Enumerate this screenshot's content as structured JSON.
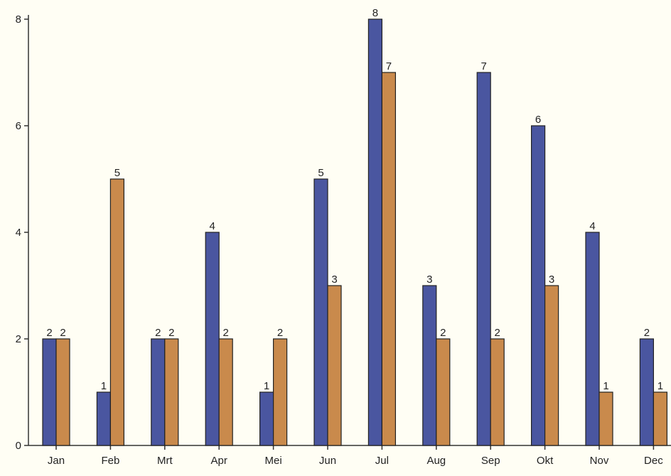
{
  "chart_data": {
    "type": "bar",
    "categories": [
      "Jan",
      "Feb",
      "Mrt",
      "Apr",
      "Mei",
      "Jun",
      "Jul",
      "Aug",
      "Sep",
      "Okt",
      "Nov",
      "Dec"
    ],
    "series": [
      {
        "values": [
          2,
          1,
          2,
          4,
          1,
          5,
          8,
          3,
          7,
          6,
          4,
          2
        ],
        "color": "#4a56a0"
      },
      {
        "values": [
          2,
          5,
          2,
          2,
          2,
          3,
          7,
          2,
          2,
          3,
          1,
          1
        ],
        "color": "#c98a4c"
      }
    ],
    "yticks": [
      0,
      2,
      4,
      6,
      8
    ],
    "ylim": [
      0,
      8
    ],
    "grid": false,
    "legend": "none",
    "data_labels": true
  }
}
